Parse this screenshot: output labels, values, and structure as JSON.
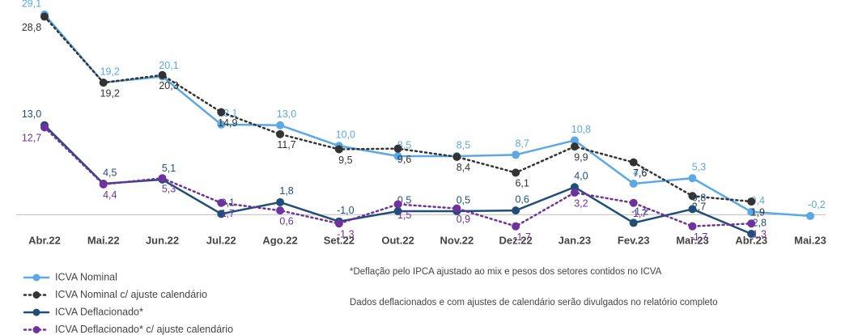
{
  "chart_data": {
    "type": "line",
    "categories": [
      "Abr.22",
      "Mai.22",
      "Jun.22",
      "Jul.22",
      "Ago.22",
      "Set.22",
      "Out.22",
      "Nov.22",
      "Dez.22",
      "Jan.23",
      "Fev.23",
      "Mar.23",
      "Abr.23",
      "Mai.23"
    ],
    "series": [
      {
        "name": "ICVA Nominal",
        "color": "#5aa9e6",
        "style": "solid",
        "values": [
          29.1,
          19.2,
          20.1,
          13.1,
          13.0,
          10.0,
          8.5,
          8.5,
          8.7,
          10.8,
          4.5,
          5.3,
          0.4,
          -0.2
        ],
        "value_labels": [
          "29,1",
          "19,2",
          "20,1",
          "13,1",
          "13,0",
          "10,0",
          "8,5",
          "8,5",
          "8,7",
          "10,8",
          "4,5",
          "5,3",
          "0,4",
          "-0,2"
        ]
      },
      {
        "name": "ICVA Nominal c/ ajuste calendário",
        "color": "#333333",
        "style": "dotted",
        "values": [
          28.8,
          19.2,
          20.3,
          14.9,
          11.7,
          9.5,
          9.6,
          8.4,
          6.1,
          9.9,
          7.6,
          2.7,
          1.9,
          null
        ],
        "value_labels": [
          "28,8",
          "19,2",
          "20,3",
          "14,9",
          "11,7",
          "9,5",
          "9,6",
          "8,4",
          "6,1",
          "9,9",
          "7,6",
          "2,7",
          "1,9",
          null
        ]
      },
      {
        "name": "ICVA Deflacionado*",
        "color": "#1f4e79",
        "style": "solid",
        "values": [
          13.0,
          4.5,
          5.1,
          0.1,
          1.8,
          -1.0,
          0.5,
          0.5,
          0.6,
          4.0,
          -1.2,
          0.8,
          -2.8,
          null
        ],
        "value_labels": [
          "13,0",
          "4,5",
          "5,1",
          "0,1",
          "1,8",
          "-1,0",
          "0,5",
          "0,5",
          "0,6",
          "4,0",
          "-1,2",
          "0,8",
          "-2,8",
          null
        ]
      },
      {
        "name": "ICVA Deflacionado* c/ ajuste calendário",
        "color": "#7030a0",
        "style": "dotted",
        "values": [
          12.7,
          4.4,
          5.3,
          1.7,
          0.6,
          -1.3,
          1.5,
          0.9,
          -1.7,
          3.2,
          1.7,
          -1.7,
          -1.3,
          null
        ],
        "value_labels": [
          "12,7",
          "4,4",
          "5,3",
          "1,7",
          "0,6",
          "-1,3",
          "1,5",
          "0,9",
          "-1,7",
          "3,2",
          "1,7",
          "-1,7",
          "-1,3",
          null
        ]
      }
    ],
    "notes": [
      "*Deflação pelo IPCA ajustado ao mix e pesos dos setores contidos no ICVA",
      "Dados deflacionados e com ajustes de calendário serão divulgados no relatório completo"
    ]
  }
}
